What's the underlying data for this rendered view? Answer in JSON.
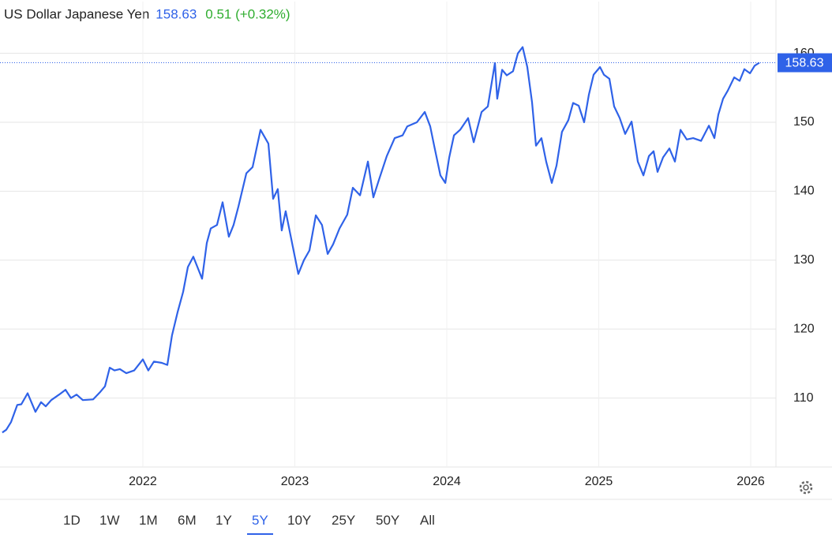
{
  "chart_data": {
    "type": "line",
    "title": "US Dollar Japanese Yen",
    "last_price": "158.63",
    "change": "0.51 (+0.32%)",
    "ranges": [
      "1D",
      "1W",
      "1M",
      "6M",
      "1Y",
      "5Y",
      "10Y",
      "25Y",
      "50Y",
      "All"
    ],
    "selected_range": "5Y",
    "xlim": [
      2021.06,
      2026.166
    ],
    "xticks": [
      2022,
      2023,
      2024,
      2025,
      2026
    ],
    "ylim": [
      100,
      167.5
    ],
    "yticks": [
      110,
      120,
      130,
      140,
      150,
      160
    ],
    "grid": true,
    "series": [
      {
        "name": "US Dollar Japanese Yen",
        "color": "#2f62e8",
        "x": [
          2021.075,
          2021.101,
          2021.132,
          2021.174,
          2021.2,
          2021.242,
          2021.293,
          2021.33,
          2021.361,
          2021.397,
          2021.449,
          2021.491,
          2021.527,
          2021.564,
          2021.605,
          2021.673,
          2021.72,
          2021.751,
          2021.782,
          2021.813,
          2021.849,
          2021.891,
          2021.943,
          2022.0,
          2022.036,
          2022.073,
          2022.125,
          2022.161,
          2022.192,
          2022.229,
          2022.265,
          2022.296,
          2022.332,
          2022.39,
          2022.421,
          2022.447,
          2022.488,
          2022.525,
          2022.566,
          2022.597,
          2022.629,
          2022.681,
          2022.722,
          2022.774,
          2022.826,
          2022.857,
          2022.888,
          2022.914,
          2022.94,
          2022.992,
          2023.023,
          2023.06,
          2023.096,
          2023.138,
          2023.179,
          2023.216,
          2023.252,
          2023.294,
          2023.345,
          2023.382,
          2023.429,
          2023.481,
          2023.517,
          2023.553,
          2023.605,
          2023.657,
          2023.709,
          2023.74,
          2023.803,
          2023.855,
          2023.891,
          2023.917,
          2023.958,
          2023.99,
          2024.016,
          2024.047,
          2024.088,
          2024.14,
          2024.177,
          2024.229,
          2024.27,
          2024.317,
          2024.332,
          2024.364,
          2024.395,
          2024.436,
          2024.468,
          2024.499,
          2024.53,
          2024.561,
          2024.587,
          2024.623,
          2024.654,
          2024.691,
          2024.722,
          2024.758,
          2024.8,
          2024.831,
          2024.868,
          2024.904,
          2024.935,
          2024.966,
          2025.008,
          2025.034,
          2025.07,
          2025.101,
          2025.138,
          2025.174,
          2025.216,
          2025.257,
          2025.294,
          2025.33,
          2025.361,
          2025.387,
          2025.423,
          2025.465,
          2025.501,
          2025.538,
          2025.579,
          2025.621,
          2025.673,
          2025.725,
          2025.761,
          2025.787,
          2025.818,
          2025.849,
          2025.891,
          2025.927,
          2025.958,
          2025.995,
          2026.026,
          2026.057
        ],
        "values": [
          105.0,
          105.4,
          106.5,
          109.0,
          109.1,
          110.7,
          108.0,
          109.4,
          108.8,
          109.7,
          110.5,
          111.2,
          110.0,
          110.5,
          109.7,
          109.8,
          110.9,
          111.7,
          114.4,
          114.0,
          114.2,
          113.6,
          114.0,
          115.6,
          114.0,
          115.3,
          115.1,
          114.8,
          119.1,
          122.5,
          125.4,
          129.0,
          130.5,
          127.3,
          132.5,
          134.6,
          135.1,
          138.4,
          133.4,
          135.1,
          137.8,
          142.6,
          143.5,
          148.9,
          146.9,
          138.9,
          140.3,
          134.3,
          137.1,
          131.4,
          128.0,
          130.0,
          131.4,
          136.5,
          135.1,
          130.9,
          132.3,
          134.6,
          136.6,
          140.5,
          139.4,
          144.3,
          139.1,
          141.6,
          145.1,
          147.7,
          148.1,
          149.4,
          150.0,
          151.5,
          149.4,
          146.6,
          142.3,
          141.2,
          144.9,
          148.1,
          148.9,
          150.6,
          147.1,
          151.5,
          152.3,
          158.6,
          153.4,
          157.6,
          156.8,
          157.4,
          160.0,
          160.9,
          158.0,
          152.9,
          146.6,
          147.7,
          144.3,
          141.2,
          143.7,
          148.6,
          150.3,
          152.8,
          152.4,
          150.0,
          154.0,
          156.9,
          158.0,
          156.9,
          156.3,
          152.3,
          150.6,
          148.3,
          150.1,
          144.3,
          142.3,
          145.1,
          145.8,
          142.8,
          144.9,
          146.2,
          144.3,
          148.9,
          147.5,
          147.7,
          147.3,
          149.5,
          147.7,
          151.1,
          153.4,
          154.6,
          156.5,
          156.0,
          157.7,
          157.1,
          158.2,
          158.63
        ]
      }
    ]
  }
}
